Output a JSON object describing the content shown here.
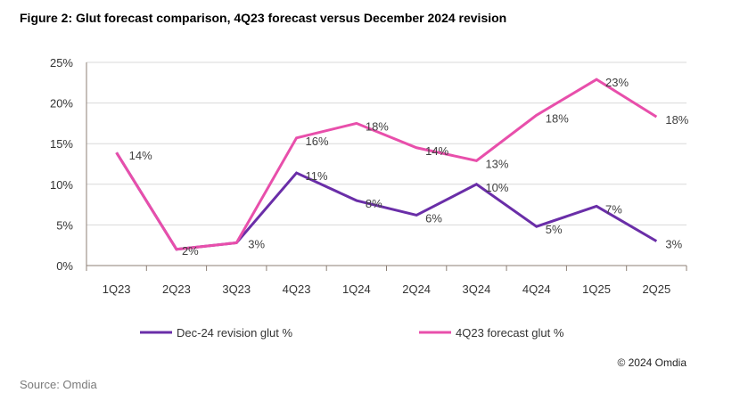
{
  "title": "Figure 2: Glut forecast comparison, 4Q23 forecast versus December 2024 revision",
  "copyright": "© 2024 Omdia",
  "source": "Source: Omdia",
  "chart_data": {
    "type": "line",
    "title": "Figure 2: Glut forecast comparison, 4Q23 forecast versus December 2024 revision",
    "xlabel": "",
    "ylabel": "",
    "categories": [
      "1Q23",
      "2Q23",
      "3Q23",
      "4Q23",
      "1Q24",
      "2Q24",
      "3Q24",
      "4Q24",
      "1Q25",
      "2Q25"
    ],
    "ylim": [
      0,
      25
    ],
    "yticks": [
      0,
      5,
      10,
      15,
      20,
      25
    ],
    "ytick_labels": [
      "0%",
      "5%",
      "10%",
      "15%",
      "20%",
      "25%"
    ],
    "grid": true,
    "legend_position": "bottom",
    "series": [
      {
        "name": "Dec-24 revision glut %",
        "color": "#6a2ea8",
        "values": [
          13.9,
          2.0,
          2.8,
          11.4,
          8.0,
          6.2,
          10.0,
          4.8,
          7.3,
          3.0
        ],
        "labels": [
          null,
          null,
          null,
          "11%",
          "8%",
          "6%",
          "10%",
          "5%",
          "7%",
          "3%"
        ]
      },
      {
        "name": "4Q23 forecast glut %",
        "color": "#e84fab",
        "values": [
          13.9,
          2.0,
          2.8,
          15.7,
          17.5,
          14.5,
          12.9,
          18.5,
          22.9,
          18.3
        ],
        "labels": [
          "14%",
          "2%",
          "3%",
          "16%",
          "18%",
          "14%",
          "13%",
          "18%",
          "23%",
          "18%"
        ]
      }
    ]
  }
}
